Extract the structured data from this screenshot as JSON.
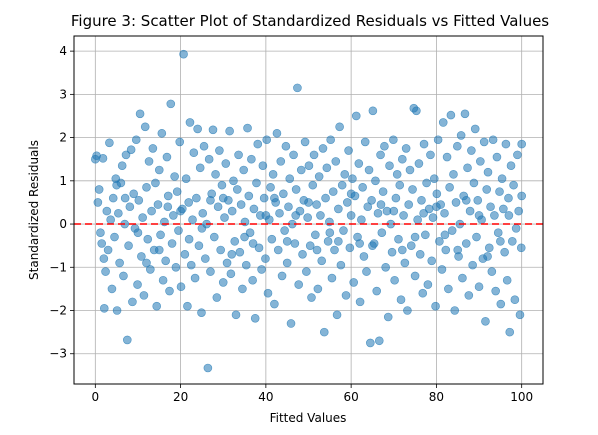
{
  "chart_data": {
    "type": "scatter",
    "title": "Figure 3: Scatter Plot of Standardized Residuals vs Fitted Values",
    "xlabel": "Fitted Values",
    "ylabel": "Standardized Residuals",
    "xlim": [
      -5,
      105
    ],
    "ylim": [
      -3.7,
      4.35
    ],
    "xticks": [
      0,
      20,
      40,
      60,
      80,
      100
    ],
    "yticks": [
      -3,
      -2,
      -1,
      0,
      1,
      2,
      3,
      4
    ],
    "grid": true,
    "marker_color": "#1f77b4",
    "reference_line": {
      "y": 0,
      "color": "#ff0000",
      "style": "dashed"
    },
    "points": [
      [
        0.3,
        1.58
      ],
      [
        0.6,
        0.5
      ],
      [
        0.9,
        0.8
      ],
      [
        1.2,
        -0.2
      ],
      [
        1.5,
        -0.45
      ],
      [
        1.8,
        1.52
      ],
      [
        2.1,
        -1.95
      ],
      [
        2.4,
        -1.1
      ],
      [
        2.7,
        0.3
      ],
      [
        3.0,
        -0.6
      ],
      [
        3.3,
        1.88
      ],
      [
        3.6,
        0.1
      ],
      [
        3.9,
        -1.5
      ],
      [
        4.2,
        0.6
      ],
      [
        4.5,
        -0.3
      ],
      [
        4.8,
        1.05
      ],
      [
        5.1,
        -2.0
      ],
      [
        5.4,
        0.25
      ],
      [
        5.7,
        -0.9
      ],
      [
        6.0,
        0.95
      ],
      [
        6.3,
        1.35
      ],
      [
        6.6,
        -1.2
      ],
      [
        6.9,
        0.0
      ],
      [
        7.2,
        1.6
      ],
      [
        7.5,
        -2.68
      ],
      [
        7.8,
        -0.5
      ],
      [
        8.1,
        0.4
      ],
      [
        8.4,
        1.72
      ],
      [
        8.7,
        -1.8
      ],
      [
        9.0,
        0.7
      ],
      [
        9.3,
        -0.1
      ],
      [
        9.6,
        1.95
      ],
      [
        9.9,
        -1.4
      ],
      [
        10.2,
        0.55
      ],
      [
        10.5,
        2.55
      ],
      [
        10.8,
        -0.75
      ],
      [
        11.1,
        0.15
      ],
      [
        11.4,
        -1.65
      ],
      [
        11.7,
        2.25
      ],
      [
        12.0,
        0.85
      ],
      [
        12.3,
        -0.35
      ],
      [
        12.6,
        1.45
      ],
      [
        12.9,
        -1.05
      ],
      [
        13.2,
        0.3
      ],
      [
        13.5,
        1.75
      ],
      [
        13.8,
        -0.6
      ],
      [
        14.1,
        0.95
      ],
      [
        14.4,
        -1.9
      ],
      [
        14.7,
        0.45
      ],
      [
        15.0,
        1.25
      ],
      [
        15.3,
        -0.25
      ],
      [
        15.6,
        2.1
      ],
      [
        15.9,
        -1.3
      ],
      [
        16.2,
        0.05
      ],
      [
        16.5,
        -0.85
      ],
      [
        16.8,
        1.55
      ],
      [
        17.1,
        0.65
      ],
      [
        17.4,
        -1.55
      ],
      [
        17.7,
        2.78
      ],
      [
        18.0,
        -0.45
      ],
      [
        18.3,
        0.2
      ],
      [
        18.6,
        1.1
      ],
      [
        18.9,
        -1.0
      ],
      [
        19.2,
        0.75
      ],
      [
        19.5,
        -0.15
      ],
      [
        19.8,
        1.9
      ],
      [
        20.1,
        -1.45
      ],
      [
        20.4,
        0.35
      ],
      [
        20.7,
        3.93
      ],
      [
        21.0,
        -0.7
      ],
      [
        21.3,
        1.05
      ],
      [
        21.6,
        -1.9
      ],
      [
        21.9,
        0.5
      ],
      [
        22.2,
        2.35
      ],
      [
        22.5,
        -0.95
      ],
      [
        22.8,
        0.1
      ],
      [
        23.1,
        1.65
      ],
      [
        23.4,
        -1.25
      ],
      [
        23.7,
        0.6
      ],
      [
        24.0,
        2.2
      ],
      [
        24.3,
        -0.5
      ],
      [
        24.6,
        1.3
      ],
      [
        24.9,
        -2.05
      ],
      [
        25.2,
        0.25
      ],
      [
        25.5,
        1.8
      ],
      [
        25.8,
        -0.8
      ],
      [
        26.1,
        0.0
      ],
      [
        26.4,
        -3.33
      ],
      [
        26.7,
        1.5
      ],
      [
        27.0,
        -1.1
      ],
      [
        27.3,
        0.7
      ],
      [
        27.6,
        2.18
      ],
      [
        27.9,
        -0.3
      ],
      [
        28.2,
        1.15
      ],
      [
        28.5,
        -1.7
      ],
      [
        28.8,
        0.4
      ],
      [
        29.1,
        1.7
      ],
      [
        29.4,
        -0.6
      ],
      [
        29.7,
        0.9
      ],
      [
        30.0,
        -1.35
      ],
      [
        30.3,
        0.15
      ],
      [
        30.6,
        1.4
      ],
      [
        30.9,
        -0.9
      ],
      [
        31.2,
        0.55
      ],
      [
        31.5,
        2.15
      ],
      [
        31.8,
        -1.15
      ],
      [
        32.1,
        0.3
      ],
      [
        32.4,
        1.0
      ],
      [
        32.7,
        -0.4
      ],
      [
        33.0,
        -2.1
      ],
      [
        33.3,
        0.8
      ],
      [
        33.6,
        1.6
      ],
      [
        33.9,
        -0.65
      ],
      [
        34.2,
        0.45
      ],
      [
        34.5,
        -1.5
      ],
      [
        34.8,
        1.25
      ],
      [
        35.1,
        0.05
      ],
      [
        35.4,
        -0.95
      ],
      [
        35.7,
        2.22
      ],
      [
        36.0,
        0.65
      ],
      [
        36.3,
        -0.2
      ],
      [
        36.6,
        1.5
      ],
      [
        36.9,
        -1.3
      ],
      [
        37.2,
        0.35
      ],
      [
        37.5,
        -2.18
      ],
      [
        37.8,
        0.95
      ],
      [
        38.1,
        1.85
      ],
      [
        38.4,
        -0.55
      ],
      [
        38.7,
        0.2
      ],
      [
        39.0,
        -1.05
      ],
      [
        39.3,
        1.35
      ],
      [
        39.6,
        0.6
      ],
      [
        39.9,
        -0.8
      ],
      [
        40.2,
        1.95
      ],
      [
        40.5,
        -1.6
      ],
      [
        40.8,
        0.1
      ],
      [
        41.1,
        0.85
      ],
      [
        41.4,
        -0.35
      ],
      [
        41.7,
        1.15
      ],
      [
        42.0,
        -1.85
      ],
      [
        42.3,
        0.5
      ],
      [
        42.6,
        2.1
      ],
      [
        42.9,
        -0.6
      ],
      [
        43.2,
        0.25
      ],
      [
        43.5,
        1.45
      ],
      [
        43.8,
        -1.2
      ],
      [
        44.1,
        0.7
      ],
      [
        44.4,
        -0.15
      ],
      [
        44.7,
        1.8
      ],
      [
        45.0,
        -0.9
      ],
      [
        45.3,
        0.4
      ],
      [
        45.6,
        1.05
      ],
      [
        45.9,
        -2.3
      ],
      [
        46.2,
        0.0
      ],
      [
        46.5,
        1.6
      ],
      [
        46.8,
        -0.45
      ],
      [
        47.1,
        0.8
      ],
      [
        47.4,
        3.15
      ],
      [
        47.7,
        -1.4
      ],
      [
        48.0,
        0.3
      ],
      [
        48.3,
        1.25
      ],
      [
        48.6,
        -0.7
      ],
      [
        48.9,
        0.55
      ],
      [
        49.2,
        1.9
      ],
      [
        49.5,
        -1.1
      ],
      [
        49.8,
        0.15
      ],
      [
        50.1,
        1.35
      ],
      [
        50.4,
        -0.5
      ],
      [
        50.7,
        -1.7
      ],
      [
        51.0,
        0.9
      ],
      [
        51.3,
        1.6
      ],
      [
        51.6,
        -0.25
      ],
      [
        51.9,
        0.45
      ],
      [
        52.2,
        -1.5
      ],
      [
        52.5,
        1.1
      ],
      [
        52.8,
        0.2
      ],
      [
        53.1,
        -0.85
      ],
      [
        53.4,
        1.75
      ],
      [
        53.7,
        -2.5
      ],
      [
        54.0,
        0.6
      ],
      [
        54.3,
        1.3
      ],
      [
        54.6,
        -0.4
      ],
      [
        54.9,
        0.05
      ],
      [
        55.2,
        1.95
      ],
      [
        55.5,
        -1.25
      ],
      [
        55.8,
        0.75
      ],
      [
        56.1,
        -0.6
      ],
      [
        56.4,
        1.45
      ],
      [
        56.7,
        -2.1
      ],
      [
        57.0,
        0.35
      ],
      [
        57.3,
        2.25
      ],
      [
        57.6,
        -0.95
      ],
      [
        57.9,
        0.9
      ],
      [
        58.2,
        -0.15
      ],
      [
        58.5,
        1.15
      ],
      [
        58.8,
        -1.65
      ],
      [
        59.1,
        0.5
      ],
      [
        59.4,
        1.7
      ],
      [
        59.7,
        -0.55
      ],
      [
        60.0,
        0.2
      ],
      [
        60.3,
        1.05
      ],
      [
        60.6,
        -1.35
      ],
      [
        60.9,
        0.65
      ],
      [
        61.2,
        2.5
      ],
      [
        61.5,
        -0.3
      ],
      [
        61.8,
        1.4
      ],
      [
        62.1,
        -1.8
      ],
      [
        62.4,
        0.1
      ],
      [
        62.7,
        0.85
      ],
      [
        63.0,
        -0.75
      ],
      [
        63.3,
        1.9
      ],
      [
        63.6,
        -1.1
      ],
      [
        63.9,
        0.4
      ],
      [
        64.2,
        1.25
      ],
      [
        64.5,
        -2.75
      ],
      [
        64.8,
        0.55
      ],
      [
        65.1,
        2.62
      ],
      [
        65.4,
        -0.45
      ],
      [
        65.7,
        1.0
      ],
      [
        66.0,
        -1.55
      ],
      [
        66.3,
        0.25
      ],
      [
        66.6,
        -2.7
      ],
      [
        66.9,
        1.6
      ],
      [
        67.2,
        -0.2
      ],
      [
        67.5,
        0.75
      ],
      [
        67.8,
        1.8
      ],
      [
        68.1,
        -1.0
      ],
      [
        68.4,
        0.3
      ],
      [
        68.7,
        -2.15
      ],
      [
        69.0,
        1.35
      ],
      [
        69.3,
        0.0
      ],
      [
        69.6,
        -0.65
      ],
      [
        69.9,
        1.95
      ],
      [
        70.2,
        -1.3
      ],
      [
        70.5,
        0.6
      ],
      [
        70.8,
        1.15
      ],
      [
        71.1,
        -0.35
      ],
      [
        71.4,
        0.9
      ],
      [
        71.7,
        -1.75
      ],
      [
        72.0,
        1.5
      ],
      [
        72.3,
        0.2
      ],
      [
        72.6,
        -0.9
      ],
      [
        72.9,
        1.75
      ],
      [
        73.2,
        -2.0
      ],
      [
        73.5,
        0.45
      ],
      [
        73.8,
        1.25
      ],
      [
        74.1,
        -0.5
      ],
      [
        74.4,
        0.8
      ],
      [
        74.7,
        2.68
      ],
      [
        75.0,
        -1.2
      ],
      [
        75.3,
        2.62
      ],
      [
        75.6,
        0.1
      ],
      [
        75.9,
        1.4
      ],
      [
        76.2,
        -0.7
      ],
      [
        76.5,
        0.55
      ],
      [
        76.8,
        -1.6
      ],
      [
        77.1,
        1.85
      ],
      [
        77.4,
        -0.25
      ],
      [
        77.7,
        0.95
      ],
      [
        78.0,
        -1.4
      ],
      [
        78.3,
        0.35
      ],
      [
        78.6,
        1.6
      ],
      [
        78.9,
        -0.85
      ],
      [
        79.2,
        0.15
      ],
      [
        79.5,
        1.05
      ],
      [
        79.8,
        -1.9
      ],
      [
        80.1,
        0.7
      ],
      [
        80.4,
        1.95
      ],
      [
        80.7,
        -0.4
      ],
      [
        81.0,
        0.45
      ],
      [
        81.3,
        -1.05
      ],
      [
        81.6,
        2.35
      ],
      [
        81.9,
        0.25
      ],
      [
        82.2,
        -0.6
      ],
      [
        82.5,
        1.55
      ],
      [
        82.8,
        -1.5
      ],
      [
        83.1,
        0.85
      ],
      [
        83.4,
        2.52
      ],
      [
        83.7,
        -0.15
      ],
      [
        84.0,
        1.15
      ],
      [
        84.3,
        -2.0
      ],
      [
        84.6,
        0.5
      ],
      [
        84.9,
        1.8
      ],
      [
        85.2,
        -0.75
      ],
      [
        85.5,
        0.0
      ],
      [
        85.8,
        2.05
      ],
      [
        86.1,
        -1.25
      ],
      [
        86.4,
        0.65
      ],
      [
        86.7,
        2.55
      ],
      [
        87.0,
        -0.45
      ],
      [
        87.3,
        1.3
      ],
      [
        87.6,
        -1.65
      ],
      [
        87.9,
        0.3
      ],
      [
        88.2,
        1.7
      ],
      [
        88.5,
        -0.95
      ],
      [
        88.8,
        0.95
      ],
      [
        89.1,
        2.2
      ],
      [
        89.4,
        -0.3
      ],
      [
        89.7,
        0.55
      ],
      [
        90.0,
        -1.45
      ],
      [
        90.3,
        1.45
      ],
      [
        90.6,
        0.1
      ],
      [
        90.9,
        -0.8
      ],
      [
        91.2,
        1.9
      ],
      [
        91.5,
        -2.25
      ],
      [
        91.8,
        0.8
      ],
      [
        92.1,
        1.2
      ],
      [
        92.4,
        -0.55
      ],
      [
        92.7,
        0.4
      ],
      [
        93.0,
        -1.1
      ],
      [
        93.3,
        1.95
      ],
      [
        93.6,
        0.2
      ],
      [
        93.9,
        -1.55
      ],
      [
        94.2,
        1.55
      ],
      [
        94.5,
        -0.2
      ],
      [
        94.8,
        0.75
      ],
      [
        95.1,
        -1.85
      ],
      [
        95.4,
        1.05
      ],
      [
        95.7,
        0.35
      ],
      [
        96.0,
        -0.65
      ],
      [
        96.3,
        1.85
      ],
      [
        96.6,
        -1.3
      ],
      [
        96.9,
        0.6
      ],
      [
        97.2,
        -2.5
      ],
      [
        97.5,
        1.35
      ],
      [
        97.8,
        -0.4
      ],
      [
        98.1,
        0.9
      ],
      [
        98.4,
        -1.75
      ],
      [
        98.7,
        -0.1
      ],
      [
        99.0,
        1.6
      ],
      [
        99.3,
        0.3
      ],
      [
        99.6,
        -2.1
      ],
      [
        99.9,
        -0.55
      ],
      [
        100.0,
        0.65
      ],
      [
        100.0,
        1.85
      ],
      [
        0.0,
        1.5
      ],
      [
        5.0,
        0.9
      ],
      [
        10.0,
        -0.2
      ],
      [
        15.0,
        -0.6
      ],
      [
        20.0,
        0.3
      ],
      [
        25.0,
        -0.1
      ],
      [
        30.0,
        0.6
      ],
      [
        35.0,
        -0.3
      ],
      [
        40.0,
        0.2
      ],
      [
        45.0,
        -0.4
      ],
      [
        50.0,
        0.5
      ],
      [
        55.0,
        -0.2
      ],
      [
        60.0,
        0.7
      ],
      [
        65.0,
        -0.5
      ],
      [
        70.0,
        0.3
      ],
      [
        75.0,
        -0.3
      ],
      [
        80.0,
        0.4
      ],
      [
        85.0,
        -0.6
      ],
      [
        90.0,
        0.2
      ],
      [
        95.0,
        -0.4
      ],
      [
        2.0,
        -0.8
      ],
      [
        12.0,
        -0.9
      ],
      [
        22.0,
        -0.35
      ],
      [
        32.0,
        -0.7
      ],
      [
        42.0,
        0.6
      ],
      [
        52.0,
        -0.6
      ],
      [
        62.0,
        -0.45
      ],
      [
        72.0,
        -0.6
      ],
      [
        82.0,
        -0.25
      ],
      [
        92.0,
        -0.75
      ],
      [
        7.0,
        0.6
      ],
      [
        17.0,
        0.4
      ],
      [
        27.0,
        0.55
      ],
      [
        37.0,
        -0.45
      ],
      [
        47.0,
        0.2
      ],
      [
        57.0,
        -0.4
      ],
      [
        67.0,
        0.45
      ],
      [
        77.0,
        0.25
      ],
      [
        87.0,
        0.55
      ],
      [
        97.0,
        0.2
      ]
    ]
  }
}
